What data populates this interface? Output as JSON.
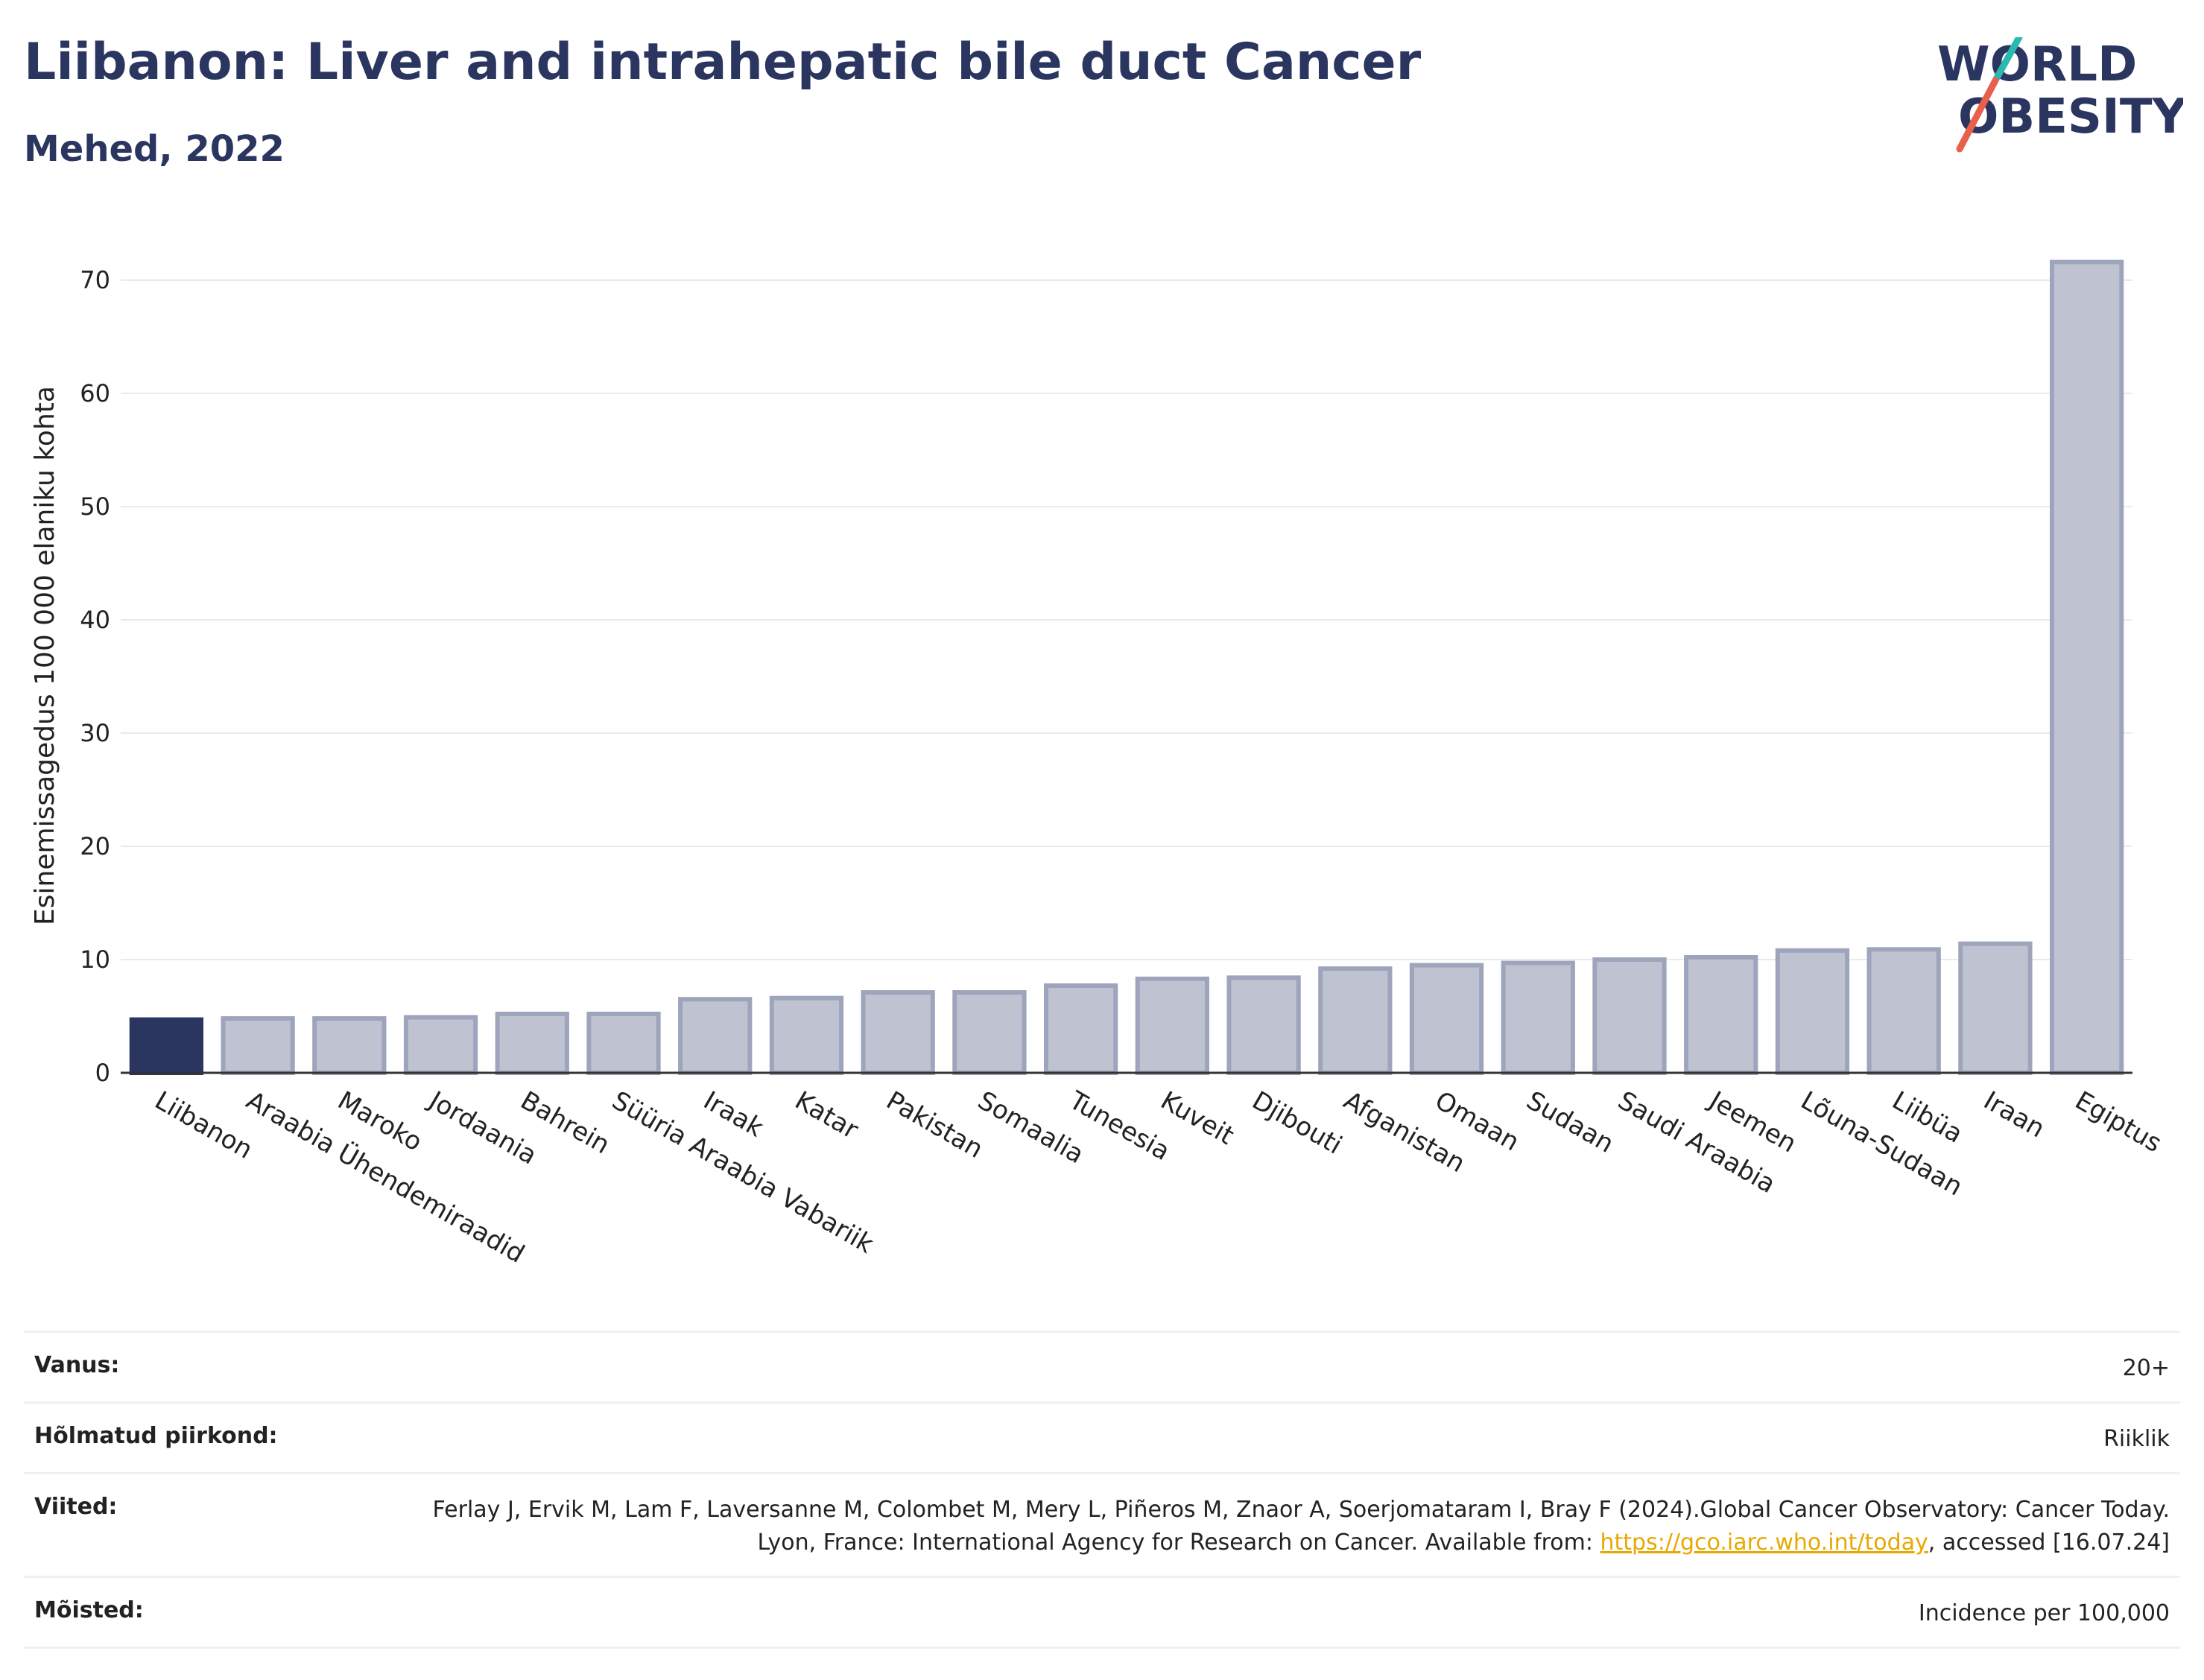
{
  "header": {
    "title": "Liibanon: Liver and intrahepatic bile duct Cancer",
    "subtitle": "Mehed, 2022"
  },
  "logo": {
    "line1": "WORLD",
    "line2": "OBESITY",
    "accent_teal": "#2bb8b0",
    "accent_red": "#e8604c"
  },
  "chart_data": {
    "type": "bar",
    "ylabel": "Esinemissagedus 100 000 elaniku kohta",
    "ylim": [
      0,
      75
    ],
    "yticks": [
      0,
      10,
      20,
      30,
      40,
      50,
      60,
      70
    ],
    "grid": true,
    "highlight_color": "#2a3560",
    "bar_color": "#bfc3d1",
    "bar_edge_color": "#9ea4bb",
    "categories": [
      "Liibanon",
      "Araabia Ühendemiraadid",
      "Maroko",
      "Jordaania",
      "Bahrein",
      "Süüria Araabia Vabariik",
      "Iraak",
      "Katar",
      "Pakistan",
      "Somaalia",
      "Tuneesia",
      "Kuveit",
      "Djibouti",
      "Afganistan",
      "Omaan",
      "Sudaan",
      "Saudi Araabia",
      "Jeemen",
      "Lõuna-Sudaan",
      "Liibüa",
      "Iraan",
      "Egiptus"
    ],
    "values": [
      4.7,
      4.8,
      4.8,
      4.9,
      5.2,
      5.2,
      6.5,
      6.6,
      7.1,
      7.1,
      7.7,
      8.3,
      8.4,
      9.2,
      9.5,
      9.7,
      10.0,
      10.2,
      10.8,
      10.9,
      11.4,
      71.6
    ],
    "highlight_index": 0
  },
  "meta": {
    "rows": [
      {
        "label": "Vanus:",
        "value": "20+"
      },
      {
        "label": "Hõlmatud piirkond:",
        "value": "Riiklik"
      },
      {
        "label": "Viited:",
        "value_pre": "Ferlay J, Ervik M, Lam F, Laversanne M, Colombet M, Mery L, Piñeros M, Znaor A, Soerjomataram I, Bray F (2024).Global Cancer Observatory: Cancer Today. Lyon, France: International Agency for Research on Cancer. Available from: ",
        "link": "https://gco.iarc.who.int/today",
        "value_post": ", accessed [16.07.24]"
      },
      {
        "label": "Mõisted:",
        "value": "Incidence per 100,000"
      }
    ]
  }
}
